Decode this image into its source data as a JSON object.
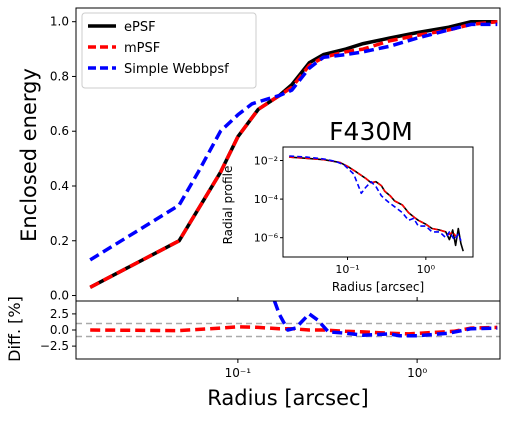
{
  "chart_data": [
    {
      "panel": "main",
      "type": "line",
      "title": "F430M",
      "xlabel": "Radius [arcsec]",
      "ylabel": "Enclosed energy",
      "xscale": "log",
      "xlim": [
        0.0125,
        2.9
      ],
      "ylim": [
        -0.02,
        1.05
      ],
      "yticks": [
        0.0,
        0.2,
        0.4,
        0.6,
        0.8,
        1.0
      ],
      "ytick_labels": [
        "0.0",
        "0.2",
        "0.4",
        "0.6",
        "0.8",
        "1.0"
      ],
      "legend": "upper-left",
      "series": [
        {
          "name": "ePSF",
          "color": "#000000",
          "style": "solid",
          "x": [
            0.015,
            0.047,
            0.08,
            0.1,
            0.13,
            0.17,
            0.2,
            0.25,
            0.3,
            0.4,
            0.5,
            0.7,
            1.0,
            1.5,
            2.0,
            2.8
          ],
          "y": [
            0.03,
            0.2,
            0.45,
            0.58,
            0.68,
            0.73,
            0.77,
            0.85,
            0.88,
            0.9,
            0.92,
            0.94,
            0.96,
            0.98,
            1.0,
            1.0
          ]
        },
        {
          "name": "mPSF",
          "color": "#ff0000",
          "style": "dashed",
          "x": [
            0.015,
            0.047,
            0.08,
            0.1,
            0.13,
            0.17,
            0.2,
            0.25,
            0.3,
            0.4,
            0.5,
            0.7,
            1.0,
            1.5,
            2.0,
            2.8
          ],
          "y": [
            0.03,
            0.2,
            0.45,
            0.58,
            0.68,
            0.73,
            0.76,
            0.84,
            0.87,
            0.89,
            0.9,
            0.93,
            0.95,
            0.97,
            0.99,
            1.0
          ]
        },
        {
          "name": "Simple Webbpsf",
          "color": "#0000ff",
          "style": "dashed",
          "x": [
            0.015,
            0.047,
            0.06,
            0.08,
            0.1,
            0.12,
            0.15,
            0.17,
            0.2,
            0.25,
            0.3,
            0.4,
            0.5,
            0.7,
            1.0,
            1.5,
            2.0,
            2.8
          ],
          "y": [
            0.13,
            0.33,
            0.45,
            0.6,
            0.66,
            0.7,
            0.72,
            0.73,
            0.75,
            0.83,
            0.87,
            0.88,
            0.89,
            0.91,
            0.94,
            0.97,
            0.99,
            0.99
          ]
        }
      ]
    },
    {
      "panel": "inset",
      "type": "line",
      "xlabel": "Radius [arcsec]",
      "ylabel": "Radial profile",
      "xscale": "log",
      "yscale": "log",
      "xlim": [
        0.015,
        4.0
      ],
      "ylim": [
        1e-07,
        0.05
      ],
      "xtick_labels": [
        "10⁻¹",
        "10⁰"
      ],
      "ytick_labels": [
        "10⁻²",
        "10⁻⁴",
        "10⁻⁶"
      ],
      "series": [
        {
          "name": "ePSF",
          "color": "#000000",
          "style": "solid",
          "x": [
            0.018,
            0.03,
            0.05,
            0.08,
            0.1,
            0.13,
            0.17,
            0.2,
            0.23,
            0.27,
            0.3,
            0.35,
            0.4,
            0.5,
            0.6,
            0.7,
            0.8,
            1.0,
            1.2,
            1.5,
            1.8,
            2.0,
            2.2,
            2.4,
            2.6,
            2.8,
            3.0
          ],
          "y": [
            0.015,
            0.013,
            0.011,
            0.008,
            0.005,
            0.0025,
            0.0012,
            0.0007,
            0.0008,
            0.0005,
            0.00025,
            0.00015,
            8e-05,
            5e-05,
            2e-05,
            1.2e-05,
            8e-06,
            5e-06,
            3e-06,
            2.5e-06,
            2e-06,
            8e-07,
            2.5e-06,
            4e-07,
            3e-06,
            5e-07,
            2e-07
          ]
        },
        {
          "name": "mPSF",
          "color": "#ff0000",
          "style": "dashed",
          "x": [
            0.018,
            0.03,
            0.05,
            0.08,
            0.1,
            0.13,
            0.17,
            0.2,
            0.23,
            0.27,
            0.3,
            0.35,
            0.4,
            0.5,
            0.6,
            0.7,
            0.8,
            1.0,
            1.2,
            1.5,
            1.8,
            2.0,
            2.2,
            2.5,
            2.8
          ],
          "y": [
            0.015,
            0.013,
            0.011,
            0.008,
            0.005,
            0.0025,
            0.0012,
            0.0007,
            0.0008,
            0.0005,
            0.00025,
            0.00015,
            8e-05,
            5e-05,
            2e-05,
            1.2e-05,
            8e-06,
            5e-06,
            3e-06,
            2.5e-06,
            2e-06,
            1.5e-06,
            2e-06,
            1e-06,
            8e-07
          ]
        },
        {
          "name": "Simple Webbpsf",
          "color": "#0000ff",
          "style": "dashed",
          "x": [
            0.018,
            0.03,
            0.05,
            0.07,
            0.09,
            0.12,
            0.15,
            0.17,
            0.2,
            0.23,
            0.27,
            0.3,
            0.35,
            0.4,
            0.5,
            0.6,
            0.7,
            0.8,
            1.0,
            1.2,
            1.5,
            1.8,
            2.0,
            2.3,
            2.6,
            2.8
          ],
          "y": [
            0.017,
            0.015,
            0.012,
            0.009,
            0.006,
            0.002,
            0.0002,
            0.0004,
            0.0008,
            0.00045,
            0.00015,
            0.0001,
            6e-05,
            4e-05,
            2e-05,
            8e-06,
            1e-05,
            4e-06,
            4e-06,
            2e-06,
            2e-06,
            1e-06,
            2e-06,
            8e-07,
            1.5e-06,
            7e-07
          ]
        }
      ]
    },
    {
      "panel": "diff",
      "type": "line",
      "xlabel": "Radius [arcsec]",
      "ylabel": "Diff. [%]",
      "xscale": "log",
      "xlim": [
        0.0125,
        2.9
      ],
      "ylim": [
        -4.5,
        4.5
      ],
      "yticks": [
        2.5,
        0.0,
        -2.5
      ],
      "ytick_labels": [
        "2.5",
        "0.0",
        "−2.5"
      ],
      "xtick_labels": [
        "10⁻¹",
        "10⁰"
      ],
      "reference_lines": [
        1.0,
        -1.0
      ],
      "series": [
        {
          "name": "mPSF",
          "color": "#ff0000",
          "style": "dashed",
          "x": [
            0.015,
            0.047,
            0.08,
            0.1,
            0.13,
            0.17,
            0.2,
            0.25,
            0.3,
            0.4,
            0.5,
            0.7,
            0.9,
            1.2,
            1.6,
            2.0,
            2.8
          ],
          "y": [
            0.0,
            -0.1,
            0.3,
            0.5,
            0.4,
            0.2,
            0.2,
            0.0,
            0.0,
            -0.2,
            -0.3,
            -0.5,
            -0.6,
            -0.4,
            -0.2,
            0.3,
            0.4
          ]
        },
        {
          "name": "Simple Webbpsf",
          "color": "#0000ff",
          "style": "dashed",
          "x": [
            0.16,
            0.17,
            0.19,
            0.21,
            0.25,
            0.28,
            0.32,
            0.4,
            0.5,
            0.7,
            0.8,
            1.0,
            1.5,
            2.0,
            2.8
          ],
          "y": [
            4.5,
            2.5,
            0.0,
            0.3,
            2.5,
            1.5,
            -0.3,
            -0.5,
            -0.8,
            -0.6,
            -0.9,
            -0.9,
            -0.5,
            0.2,
            0.3
          ]
        }
      ]
    }
  ]
}
